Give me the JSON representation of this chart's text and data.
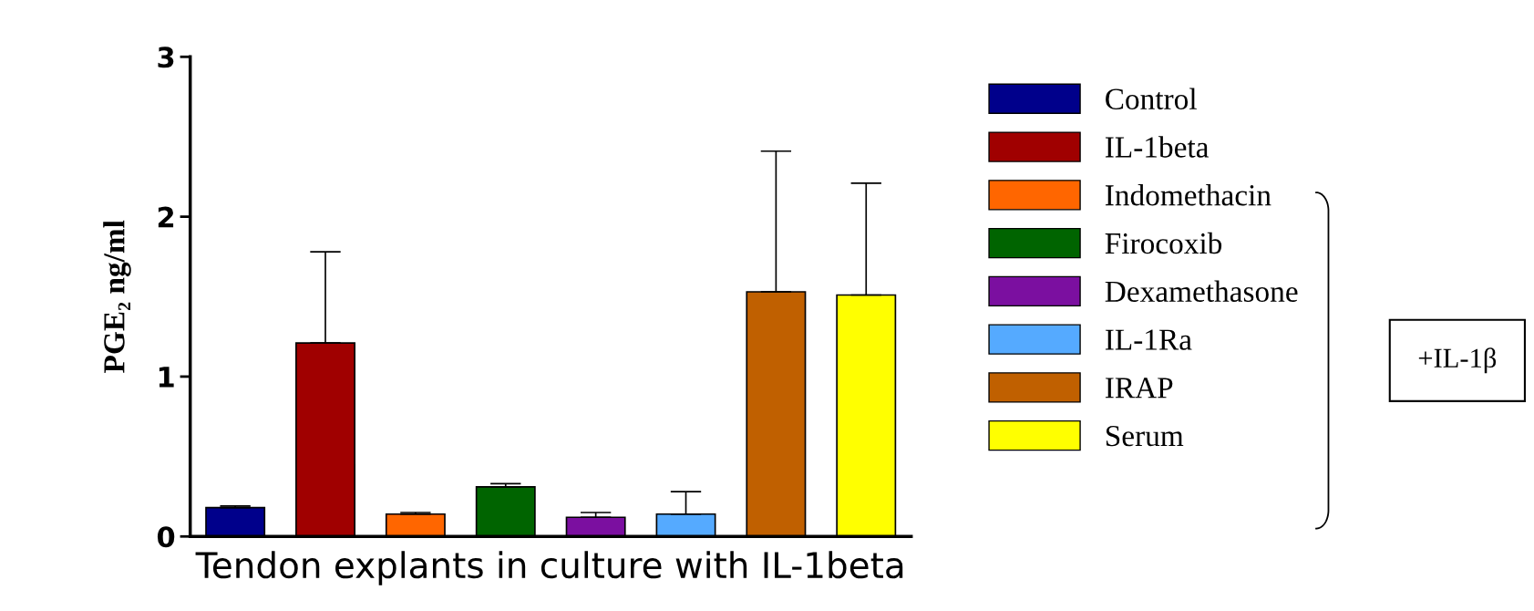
{
  "chart_data": {
    "type": "bar",
    "ylabel": "PGE₂ ng/ml",
    "xlabel": "Tendon explants in culture with IL-1beta",
    "categories": [
      null,
      null,
      null,
      null,
      null,
      null,
      null,
      null
    ],
    "series": [
      {
        "name": "Control",
        "color": "#00008b",
        "values": [
          0.18,
          null,
          null,
          null,
          null,
          null,
          null,
          null
        ],
        "errors": [
          [
            0.18,
            0.19
          ],
          null,
          null,
          null,
          null,
          null,
          null,
          null
        ]
      },
      {
        "name": "IL-1beta",
        "color": "#a00000",
        "values": [
          null,
          1.21,
          null,
          null,
          null,
          null,
          null,
          null
        ],
        "errors": [
          null,
          [
            1.21,
            1.78
          ],
          null,
          null,
          null,
          null,
          null,
          null
        ]
      },
      {
        "name": "Indomethacin",
        "color": "#ff6600",
        "values": [
          null,
          null,
          0.14,
          null,
          null,
          null,
          null,
          null
        ],
        "errors": [
          null,
          null,
          [
            0.14,
            0.15
          ],
          null,
          null,
          null,
          null,
          null
        ]
      },
      {
        "name": "Firocoxib",
        "color": "#006400",
        "values": [
          null,
          null,
          null,
          0.31,
          null,
          null,
          null,
          null
        ],
        "errors": [
          null,
          null,
          null,
          [
            0.31,
            0.33
          ],
          null,
          null,
          null,
          null
        ]
      },
      {
        "name": "Dexamethasone",
        "color": "#7b0fa0",
        "values": [
          null,
          null,
          null,
          null,
          0.12,
          null,
          null,
          null
        ],
        "errors": [
          null,
          null,
          null,
          null,
          [
            0.12,
            0.15
          ],
          null,
          null,
          null
        ]
      },
      {
        "name": "IL-1Ra",
        "color": "#55aaff",
        "values": [
          null,
          null,
          null,
          null,
          null,
          0.14,
          null,
          null
        ],
        "errors": [
          null,
          null,
          null,
          null,
          null,
          [
            0.14,
            0.28
          ],
          null,
          null
        ]
      },
      {
        "name": "IRAP",
        "color": "#c06000",
        "values": [
          null,
          null,
          null,
          null,
          null,
          null,
          1.53,
          null
        ],
        "errors": [
          null,
          null,
          null,
          null,
          null,
          null,
          [
            1.53,
            2.41
          ],
          null
        ]
      },
      {
        "name": "Serum",
        "color": "#ffff00",
        "values": [
          null,
          null,
          null,
          null,
          null,
          null,
          null,
          1.51
        ],
        "errors": [
          null,
          null,
          null,
          null,
          null,
          null,
          null,
          [
            1.51,
            2.21
          ]
        ]
      }
    ],
    "ylim": [
      0,
      3
    ],
    "yticks": [
      0,
      1,
      2,
      3
    ],
    "grid": false,
    "legend": "right",
    "annotations": [
      "+IL-1β"
    ]
  }
}
